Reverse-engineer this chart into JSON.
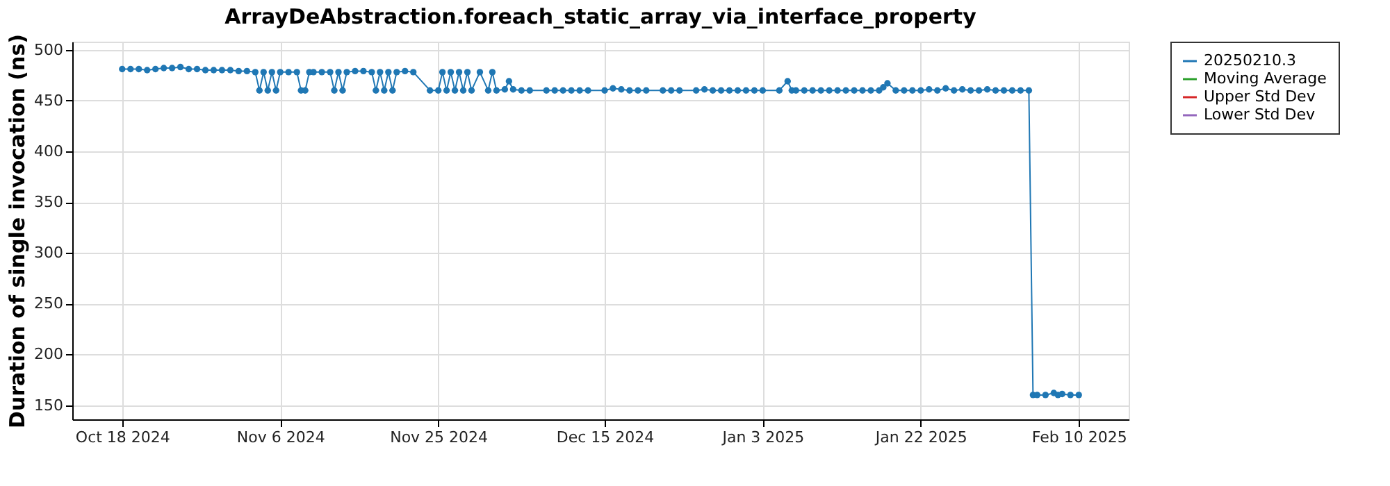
{
  "chart_data": {
    "type": "line",
    "title": "ArrayDeAbstraction.foreach_static_array_via_interface_property",
    "ylabel": "Duration of single invocation (ns)",
    "x": [
      "2024-10-18",
      "2024-10-19",
      "2024-10-20",
      "2024-10-21",
      "2024-10-22",
      "2024-10-23",
      "2024-10-24",
      "2024-10-25",
      "2024-10-26",
      "2024-10-27",
      "2024-10-28",
      "2024-10-29",
      "2024-10-30",
      "2024-10-31",
      "2024-11-01",
      "2024-11-02",
      "2024-11-03",
      "2024-11-03T12:00",
      "2024-11-04",
      "2024-11-04T12:00",
      "2024-11-05",
      "2024-11-05T12:00",
      "2024-11-06",
      "2024-11-07",
      "2024-11-08",
      "2024-11-08T12:00",
      "2024-11-09",
      "2024-11-09T12:00",
      "2024-11-10",
      "2024-11-11",
      "2024-11-12",
      "2024-11-12T12:00",
      "2024-11-13",
      "2024-11-13T12:00",
      "2024-11-14",
      "2024-11-15",
      "2024-11-16",
      "2024-11-17",
      "2024-11-17T12:00",
      "2024-11-18",
      "2024-11-18T12:00",
      "2024-11-19",
      "2024-11-19T12:00",
      "2024-11-20",
      "2024-11-21",
      "2024-11-22",
      "2024-11-24",
      "2024-11-25",
      "2024-11-25T12:00",
      "2024-11-26",
      "2024-11-26T12:00",
      "2024-11-27",
      "2024-11-27T12:00",
      "2024-11-28",
      "2024-11-28T12:00",
      "2024-11-29",
      "2024-11-30",
      "2024-12-01",
      "2024-12-01T12:00",
      "2024-12-02",
      "2024-12-03",
      "2024-12-03T12:00",
      "2024-12-04",
      "2024-12-05",
      "2024-12-06",
      "2024-12-08",
      "2024-12-09",
      "2024-12-10",
      "2024-12-11",
      "2024-12-12",
      "2024-12-13",
      "2024-12-15",
      "2024-12-16",
      "2024-12-17",
      "2024-12-18",
      "2024-12-19",
      "2024-12-20",
      "2024-12-22",
      "2024-12-23",
      "2024-12-24",
      "2024-12-26",
      "2024-12-27",
      "2024-12-28",
      "2024-12-29",
      "2024-12-30",
      "2024-12-31",
      "2025-01-01",
      "2025-01-02",
      "2025-01-03",
      "2025-01-05",
      "2025-01-06",
      "2025-01-06T12:00",
      "2025-01-07",
      "2025-01-08",
      "2025-01-09",
      "2025-01-10",
      "2025-01-11",
      "2025-01-12",
      "2025-01-13",
      "2025-01-14",
      "2025-01-15",
      "2025-01-16",
      "2025-01-17",
      "2025-01-17T12:00",
      "2025-01-18",
      "2025-01-19",
      "2025-01-20",
      "2025-01-21",
      "2025-01-22",
      "2025-01-23",
      "2025-01-24",
      "2025-01-25",
      "2025-01-26",
      "2025-01-27",
      "2025-01-28",
      "2025-01-29",
      "2025-01-30",
      "2025-01-31",
      "2025-02-01",
      "2025-02-02",
      "2025-02-03",
      "2025-02-04",
      "2025-02-04T12:00",
      "2025-02-05",
      "2025-02-06",
      "2025-02-07",
      "2025-02-07T12:00",
      "2025-02-08",
      "2025-02-09",
      "2025-02-10"
    ],
    "series": [
      {
        "name": "20250210.3",
        "color": "#1f77b4",
        "values": [
          481,
          481,
          481,
          480,
          481,
          482,
          482,
          483,
          481,
          481,
          480,
          480,
          480,
          480,
          479,
          479,
          478,
          460,
          478,
          460,
          478,
          460,
          478,
          478,
          478,
          460,
          460,
          478,
          478,
          478,
          478,
          460,
          478,
          460,
          478,
          479,
          479,
          478,
          460,
          478,
          460,
          478,
          460,
          478,
          479,
          478,
          460,
          460,
          478,
          460,
          478,
          460,
          478,
          460,
          478,
          460,
          478,
          460,
          478,
          460,
          461,
          469,
          461,
          460,
          460,
          460,
          460,
          460,
          460,
          460,
          460,
          460,
          462,
          461,
          460,
          460,
          460,
          460,
          460,
          460,
          460,
          461,
          460,
          460,
          460,
          460,
          460,
          460,
          460,
          460,
          469,
          460,
          460,
          460,
          460,
          460,
          460,
          460,
          460,
          460,
          460,
          460,
          460,
          463,
          467,
          460,
          460,
          460,
          460,
          461,
          460,
          462,
          460,
          461,
          460,
          460,
          461,
          460,
          460,
          460,
          460,
          460,
          160,
          160,
          160,
          162,
          160,
          161,
          160,
          160
        ]
      },
      {
        "name": "Moving Average",
        "color": "#2ca02c",
        "values": [
          null,
          null,
          null,
          null,
          null,
          null,
          null,
          null,
          null,
          null,
          null,
          null,
          null,
          null,
          null,
          null,
          null,
          null,
          null,
          null,
          null,
          null,
          null,
          null,
          null,
          null,
          null,
          null,
          null,
          null,
          null,
          null,
          null,
          null,
          null,
          null,
          null,
          null,
          null,
          null,
          null,
          null,
          null,
          null,
          null,
          null,
          null,
          null,
          null,
          null,
          null,
          null,
          null,
          null,
          null,
          null,
          null,
          null,
          null,
          null,
          null,
          null,
          null,
          null,
          null,
          null,
          null,
          null,
          null,
          null,
          null,
          null,
          null,
          null,
          null,
          null,
          null,
          null,
          null,
          null,
          null,
          null,
          null,
          null,
          null,
          null,
          null,
          null,
          null,
          null,
          null,
          null,
          null,
          null,
          null,
          null,
          null,
          null,
          null,
          null,
          null,
          null,
          null,
          null,
          null,
          null,
          null,
          null,
          null,
          null,
          null,
          null,
          null,
          null,
          null,
          null,
          null,
          null,
          null,
          null,
          null,
          null,
          null,
          null,
          null,
          null,
          null,
          null,
          null,
          null
        ]
      },
      {
        "name": "Upper Std Dev",
        "color": "#d62728",
        "values": [
          null,
          null,
          null,
          null,
          null,
          null,
          null,
          null,
          null,
          null,
          null,
          null,
          null,
          null,
          null,
          null,
          null,
          null,
          null,
          null,
          null,
          null,
          null,
          null,
          null,
          null,
          null,
          null,
          null,
          null,
          null,
          null,
          null,
          null,
          null,
          null,
          null,
          null,
          null,
          null,
          null,
          null,
          null,
          null,
          null,
          null,
          null,
          null,
          null,
          null,
          null,
          null,
          null,
          null,
          null,
          null,
          null,
          null,
          null,
          null,
          null,
          null,
          null,
          null,
          null,
          null,
          null,
          null,
          null,
          null,
          null,
          null,
          null,
          null,
          null,
          null,
          null,
          null,
          null,
          null,
          null,
          null,
          null,
          null,
          null,
          null,
          null,
          null,
          null,
          null,
          null,
          null,
          null,
          null,
          null,
          null,
          null,
          null,
          null,
          null,
          null,
          null,
          null,
          null,
          null,
          null,
          null,
          null,
          null,
          null,
          null,
          null,
          null,
          null,
          null,
          null,
          null,
          null,
          null,
          null,
          null,
          null,
          null,
          null,
          null,
          null,
          null,
          null,
          null,
          null
        ]
      },
      {
        "name": "Lower Std Dev",
        "color": "#9467bd",
        "values": [
          null,
          null,
          null,
          null,
          null,
          null,
          null,
          null,
          null,
          null,
          null,
          null,
          null,
          null,
          null,
          null,
          null,
          null,
          null,
          null,
          null,
          null,
          null,
          null,
          null,
          null,
          null,
          null,
          null,
          null,
          null,
          null,
          null,
          null,
          null,
          null,
          null,
          null,
          null,
          null,
          null,
          null,
          null,
          null,
          null,
          null,
          null,
          null,
          null,
          null,
          null,
          null,
          null,
          null,
          null,
          null,
          null,
          null,
          null,
          null,
          null,
          null,
          null,
          null,
          null,
          null,
          null,
          null,
          null,
          null,
          null,
          null,
          null,
          null,
          null,
          null,
          null,
          null,
          null,
          null,
          null,
          null,
          null,
          null,
          null,
          null,
          null,
          null,
          null,
          null,
          null,
          null,
          null,
          null,
          null,
          null,
          null,
          null,
          null,
          null,
          null,
          null,
          null,
          null,
          null,
          null,
          null,
          null,
          null,
          null,
          null,
          null,
          null,
          null,
          null,
          null,
          null,
          null,
          null,
          null,
          null,
          null,
          null,
          null,
          null,
          null,
          null,
          null,
          null,
          null
        ]
      }
    ],
    "xlim": [
      "2024-10-12",
      "2025-02-16"
    ],
    "xticks": [
      {
        "value": "2024-10-18",
        "label": "Oct 18 2024"
      },
      {
        "value": "2024-11-06",
        "label": "Nov 6 2024"
      },
      {
        "value": "2024-11-25",
        "label": "Nov 25 2024"
      },
      {
        "value": "2024-12-15",
        "label": "Dec 15 2024"
      },
      {
        "value": "2025-01-03",
        "label": "Jan 3 2025"
      },
      {
        "value": "2025-01-22",
        "label": "Jan 22 2025"
      },
      {
        "value": "2025-02-10",
        "label": "Feb 10 2025"
      }
    ],
    "ylim": [
      136,
      508
    ],
    "yticks": [
      150,
      200,
      250,
      300,
      350,
      400,
      450,
      500
    ],
    "grid": true,
    "legend": "right",
    "marker": "circle",
    "line_style": "solid"
  }
}
